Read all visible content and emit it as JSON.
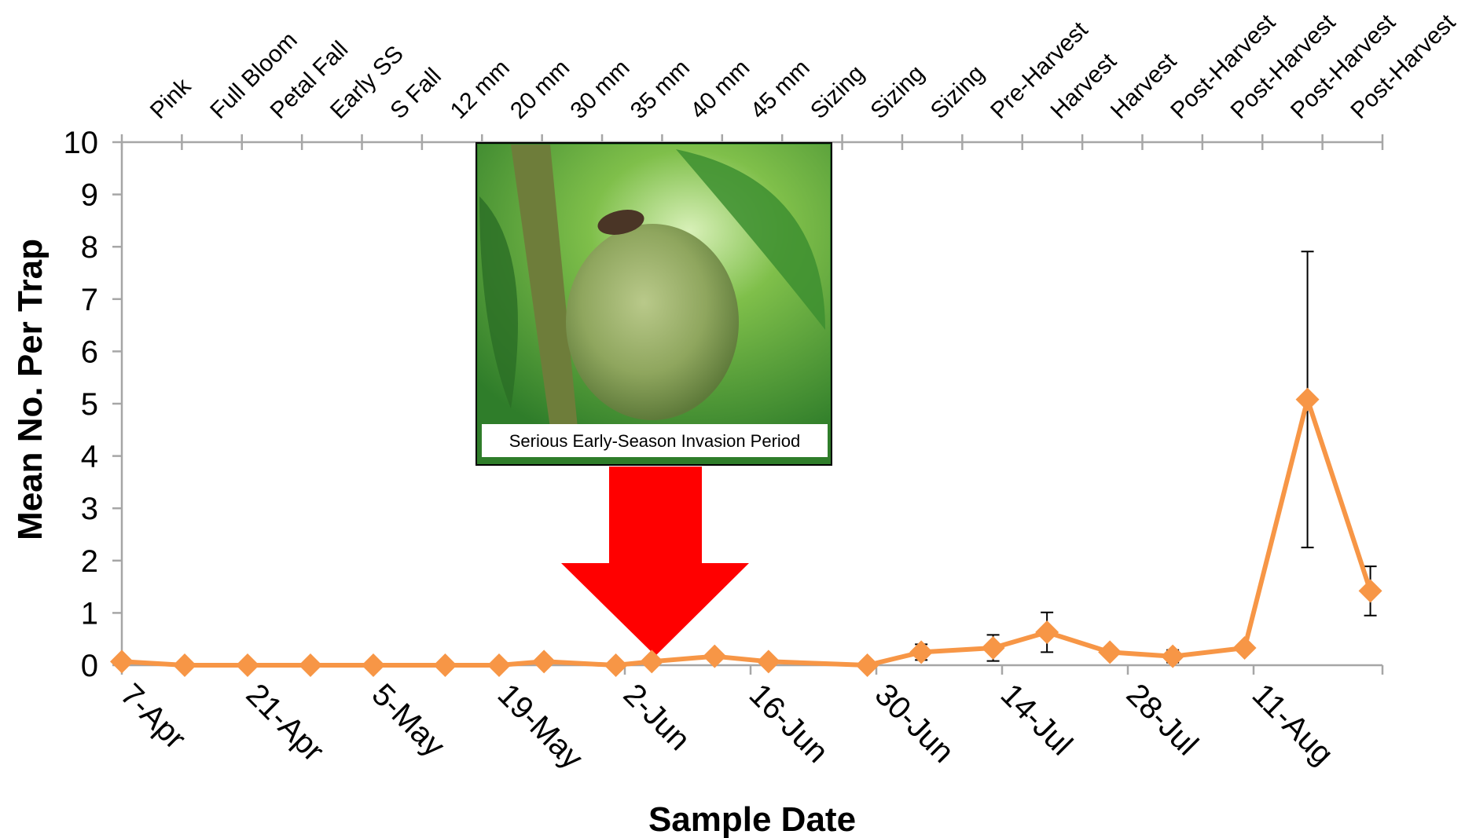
{
  "chart_data": {
    "type": "line",
    "title": "",
    "xlabel": "Sample Date",
    "ylabel": "Mean No. Per Trap",
    "ylim": [
      0,
      10
    ],
    "yticks": [
      0,
      1,
      2,
      3,
      4,
      5,
      6,
      7,
      8,
      9,
      10
    ],
    "x_date_labels": [
      "7-Apr",
      "21-Apr",
      "5-May",
      "19-May",
      "2-Jun",
      "16-Jun",
      "30-Jun",
      "14-Jul",
      "28-Jul",
      "11-Aug"
    ],
    "stage_labels": [
      "Pink",
      "Full Bloom",
      "Petal Fall",
      "Early SS",
      "S Fall",
      "12 mm",
      "20 mm",
      "30 mm",
      "35 mm",
      "40 mm",
      "45 mm",
      "Sizing",
      "Sizing",
      "Sizing",
      "Pre-Harvest",
      "Harvest",
      "Harvest",
      "Post-Harvest",
      "Post-Harvest",
      "Post-Harvest",
      "Post-Harvest"
    ],
    "grid": false,
    "legend": "none",
    "series": [
      {
        "color": "#F79646",
        "points": [
          {
            "x": "7-Apr",
            "y": 0.07,
            "err": 0
          },
          {
            "x": "14-Apr",
            "y": 0.0,
            "err": 0
          },
          {
            "x": "21-Apr",
            "y": 0.0,
            "err": 0
          },
          {
            "x": "28-Apr",
            "y": 0.0,
            "err": 0
          },
          {
            "x": "5-May",
            "y": 0.0,
            "err": 0
          },
          {
            "x": "13-May",
            "y": 0.0,
            "err": 0
          },
          {
            "x": "19-May",
            "y": 0.0,
            "err": 0
          },
          {
            "x": "24-May",
            "y": 0.07,
            "err": 0
          },
          {
            "x": "1-Jun",
            "y": 0.0,
            "err": 0
          },
          {
            "x": "5-Jun",
            "y": 0.07,
            "err": 0
          },
          {
            "x": "12-Jun",
            "y": 0.17,
            "err": 0
          },
          {
            "x": "18-Jun",
            "y": 0.07,
            "err": 0
          },
          {
            "x": "29-Jun",
            "y": 0.0,
            "err": 0
          },
          {
            "x": "5-Jul",
            "y": 0.25,
            "err": 0.15
          },
          {
            "x": "13-Jul",
            "y": 0.33,
            "err": 0.25
          },
          {
            "x": "19-Jul",
            "y": 0.63,
            "err": 0.38
          },
          {
            "x": "26-Jul",
            "y": 0.25,
            "err": 0.05
          },
          {
            "x": "2-Aug",
            "y": 0.17,
            "err": 0.12
          },
          {
            "x": "10-Aug",
            "y": 0.33,
            "err": 0
          },
          {
            "x": "17-Aug",
            "y": 5.08,
            "err": 2.83
          },
          {
            "x": "24-Aug",
            "y": 1.42,
            "err": 0.47
          }
        ]
      }
    ],
    "annotation": {
      "caption": "Serious Early-Season Invasion Period",
      "arrow_color": "#FF0000"
    }
  }
}
